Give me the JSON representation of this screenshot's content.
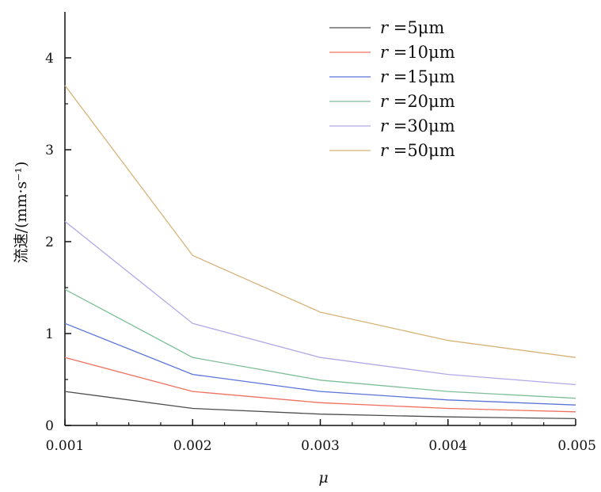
{
  "chart_data": {
    "type": "line",
    "x": [
      0.001,
      0.002,
      0.003,
      0.004,
      0.005
    ],
    "x_tick_labels": [
      "0.001",
      "0.002",
      "0.003",
      "0.004",
      "0.005"
    ],
    "y_ticks": [
      0,
      1,
      2,
      3,
      4
    ],
    "xlim": [
      0.001,
      0.005
    ],
    "ylim": [
      0,
      4.5
    ],
    "xlabel": "μ",
    "ylabel": "流速/(mm·s⁻¹)",
    "grid": false,
    "legend_position": "top-right",
    "series": [
      {
        "name": "r =5μm",
        "var": "r",
        "rest": " =5μm",
        "color": "#4d4d4d",
        "values": [
          0.37,
          0.185,
          0.123,
          0.093,
          0.074
        ]
      },
      {
        "name": "r =10μm",
        "var": "r",
        "rest": " =10μm",
        "color": "#f07060",
        "values": [
          0.74,
          0.37,
          0.247,
          0.185,
          0.148
        ]
      },
      {
        "name": "r =15μm",
        "var": "r",
        "rest": " =15μm",
        "color": "#5a73d8",
        "values": [
          1.11,
          0.555,
          0.37,
          0.278,
          0.222
        ]
      },
      {
        "name": "r =20μm",
        "var": "r",
        "rest": " =20μm",
        "color": "#7fbf98",
        "values": [
          1.48,
          0.74,
          0.493,
          0.37,
          0.296
        ]
      },
      {
        "name": "r =30μm",
        "var": "r",
        "rest": " =30μm",
        "color": "#b0a9e8",
        "values": [
          2.22,
          1.11,
          0.74,
          0.555,
          0.444
        ]
      },
      {
        "name": "r =50μm",
        "var": "r",
        "rest": " =50μm",
        "color": "#d9b277",
        "values": [
          3.7,
          1.85,
          1.233,
          0.925,
          0.74
        ]
      }
    ]
  }
}
